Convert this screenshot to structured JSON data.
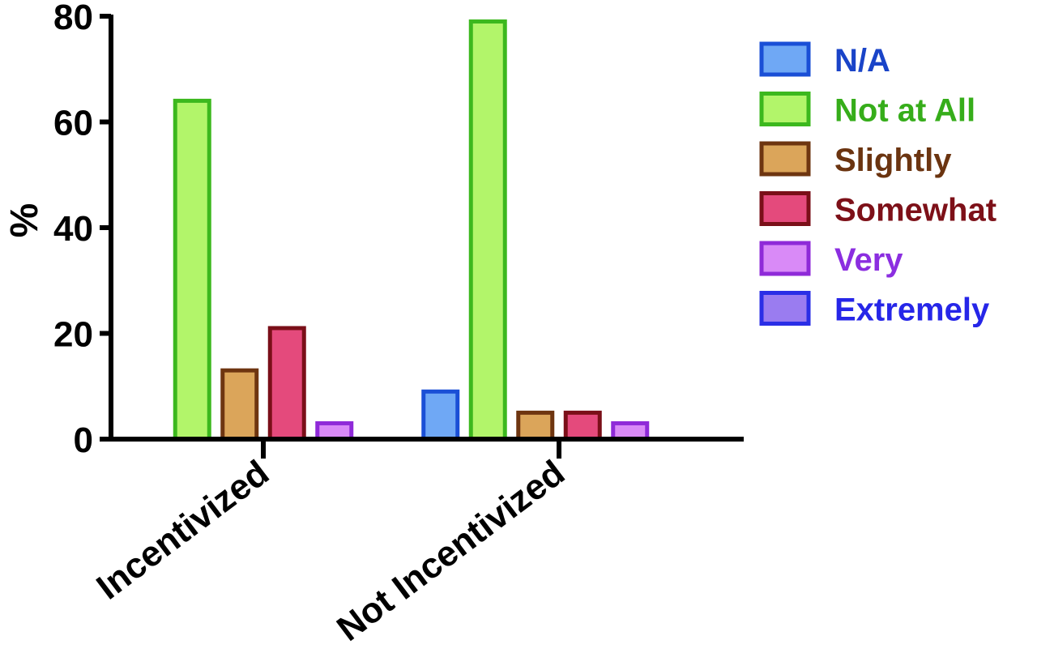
{
  "chart_data": {
    "type": "bar",
    "title": "",
    "xlabel": "",
    "ylabel": "%",
    "ylim": [
      0,
      80
    ],
    "yticks": [
      "0",
      "20",
      "40",
      "60",
      "80"
    ],
    "grid": false,
    "legend": "right",
    "categories": [
      "Incentivized",
      "Not Incentivized"
    ],
    "series": [
      {
        "name": "N/A",
        "values": [
          0,
          9
        ],
        "fill": "#6fa8f5",
        "stroke": "#1a4fd6",
        "label_color": "#1a44c8"
      },
      {
        "name": "Not at All",
        "values": [
          64,
          79
        ],
        "fill": "#b2f56a",
        "stroke": "#3cb81e",
        "label_color": "#36ad1a"
      },
      {
        "name": "Slightly",
        "values": [
          13,
          5
        ],
        "fill": "#dba55a",
        "stroke": "#6e3510",
        "label_color": "#6b3410"
      },
      {
        "name": "Somewhat",
        "values": [
          21,
          5
        ],
        "fill": "#e44a7c",
        "stroke": "#7a0f18",
        "label_color": "#7d1018"
      },
      {
        "name": "Very",
        "values": [
          3,
          3
        ],
        "fill": "#d98af7",
        "stroke": "#8f2ad8",
        "label_color": "#8b2ee0"
      },
      {
        "name": "Extremely",
        "values": [
          0,
          0
        ],
        "fill": "#9a7cf0",
        "stroke": "#2a2ee6",
        "label_color": "#2626e8"
      }
    ]
  }
}
